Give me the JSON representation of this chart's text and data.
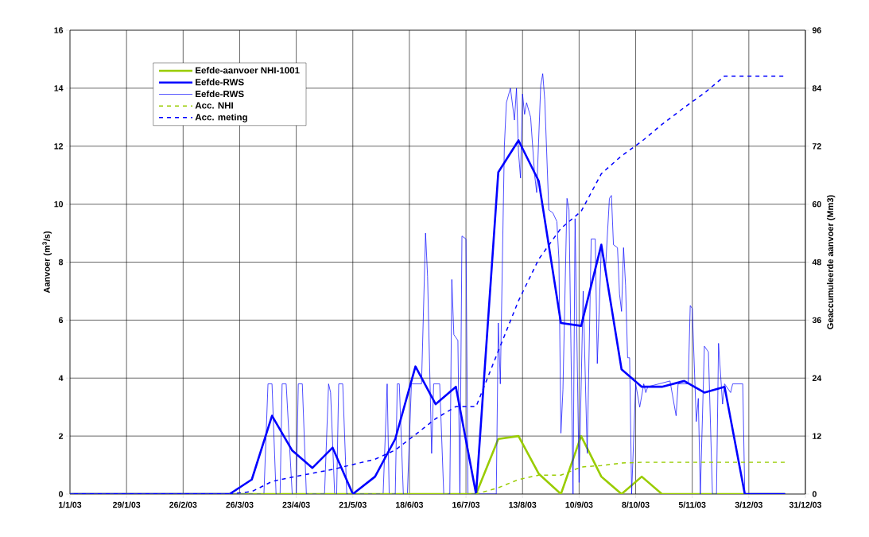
{
  "chart_data": {
    "type": "line",
    "ylabel": "Aanvoer (m$^{3}$/s)",
    "y2label": "Geaccumuleerde aanvoer (Mm3)",
    "xlim": [
      "2003-01-01",
      "2003-12-31"
    ],
    "xticks": [
      {
        "value": "2003-01-01",
        "label": "1/1/03"
      },
      {
        "value": "2003-01-29",
        "label": "29/1/03"
      },
      {
        "value": "2003-02-26",
        "label": "26/2/03"
      },
      {
        "value": "2003-03-26",
        "label": "26/3/03"
      },
      {
        "value": "2003-04-23",
        "label": "23/4/03"
      },
      {
        "value": "2003-05-21",
        "label": "21/5/03"
      },
      {
        "value": "2003-06-18",
        "label": "18/6/03"
      },
      {
        "value": "2003-07-16",
        "label": "16/7/03"
      },
      {
        "value": "2003-08-13",
        "label": "13/8/03"
      },
      {
        "value": "2003-09-10",
        "label": "10/9/03"
      },
      {
        "value": "2003-10-08",
        "label": "8/10/03"
      },
      {
        "value": "2003-11-05",
        "label": "5/11/03"
      },
      {
        "value": "2003-12-03",
        "label": "3/12/03"
      },
      {
        "value": "2003-12-31",
        "label": "31/12/03"
      }
    ],
    "ylim": [
      0,
      16
    ],
    "yticks": [
      0,
      2,
      4,
      6,
      8,
      10,
      12,
      14,
      16
    ],
    "y2lim": [
      0,
      96
    ],
    "y2ticks": [
      0,
      12,
      24,
      36,
      48,
      60,
      72,
      84,
      96
    ],
    "grid": true,
    "legend": "top left",
    "series": [
      {
        "name": "Eefde-aanvoer NHI-1001",
        "color": "#99cc00",
        "line_style": "solid",
        "x": [
          "2003-01-01",
          "2003-07-21",
          "2003-08-01",
          "2003-08-11",
          "2003-08-21",
          "2003-09-01",
          "2003-09-11",
          "2003-09-21",
          "2003-10-01",
          "2003-10-11",
          "2003-10-21",
          "2003-12-21"
        ],
        "values": [
          0,
          0,
          1.9,
          2.0,
          0.7,
          0,
          2.0,
          0.6,
          0,
          0.6,
          0,
          0
        ]
      },
      {
        "name": "Eefde-RWS",
        "color": "#0000ff",
        "line_style": "solid",
        "x": [
          "2003-01-01",
          "2003-03-21",
          "2003-04-01",
          "2003-04-11",
          "2003-04-21",
          "2003-05-01",
          "2003-05-11",
          "2003-05-21",
          "2003-06-01",
          "2003-06-11",
          "2003-06-21",
          "2003-07-01",
          "2003-07-11",
          "2003-07-21",
          "2003-08-01",
          "2003-08-11",
          "2003-08-21",
          "2003-09-01",
          "2003-09-11",
          "2003-09-21",
          "2003-10-01",
          "2003-10-11",
          "2003-10-21",
          "2003-11-01",
          "2003-11-11",
          "2003-11-21",
          "2003-12-01",
          "2003-12-21"
        ],
        "values": [
          0,
          0,
          0.5,
          2.7,
          1.5,
          0.9,
          1.6,
          0,
          0.6,
          1.9,
          4.4,
          3.1,
          3.7,
          0,
          11.1,
          12.2,
          10.8,
          5.9,
          5.8,
          8.6,
          4.3,
          3.7,
          3.7,
          3.9,
          3.5,
          3.7,
          0,
          0
        ]
      },
      {
        "name": "Eefde-RWS",
        "color": "#0000ff",
        "line_style": "solid",
        "x": [
          "2003-01-01",
          "2003-04-07",
          "2003-04-09",
          "2003-04-11",
          "2003-04-13",
          "2003-04-15",
          "2003-04-16",
          "2003-04-18",
          "2003-04-21",
          "2003-04-23",
          "2003-04-24",
          "2003-04-26",
          "2003-04-28",
          "2003-05-07",
          "2003-05-09",
          "2003-05-10",
          "2003-05-12",
          "2003-05-13",
          "2003-05-14",
          "2003-05-16",
          "2003-05-18",
          "2003-06-05",
          "2003-06-07",
          "2003-06-08",
          "2003-06-11",
          "2003-06-12",
          "2003-06-13",
          "2003-06-15",
          "2003-06-17",
          "2003-06-19",
          "2003-06-24",
          "2003-06-26",
          "2003-06-27",
          "2003-06-29",
          "2003-06-30",
          "2003-07-03",
          "2003-07-05",
          "2003-07-08",
          "2003-07-09",
          "2003-07-10",
          "2003-07-12",
          "2003-07-13",
          "2003-07-14",
          "2003-07-16",
          "2003-07-17",
          "2003-07-31",
          "2003-08-01",
          "2003-08-02",
          "2003-08-04",
          "2003-08-05",
          "2003-08-07",
          "2003-08-09",
          "2003-08-10",
          "2003-08-11",
          "2003-08-12",
          "2003-08-13",
          "2003-08-14",
          "2003-08-15",
          "2003-08-17",
          "2003-08-19",
          "2003-08-20",
          "2003-08-22",
          "2003-08-23",
          "2003-08-24",
          "2003-08-26",
          "2003-08-28",
          "2003-08-30",
          "2003-08-31",
          "2003-09-01",
          "2003-09-02",
          "2003-09-04",
          "2003-09-05",
          "2003-09-07",
          "2003-09-08",
          "2003-09-10",
          "2003-09-12",
          "2003-09-14",
          "2003-09-16",
          "2003-09-18",
          "2003-09-19",
          "2003-09-21",
          "2003-09-23",
          "2003-09-25",
          "2003-09-26",
          "2003-09-27",
          "2003-09-29",
          "2003-09-30",
          "2003-10-01",
          "2003-10-02",
          "2003-10-03",
          "2003-10-04",
          "2003-10-05",
          "2003-10-06",
          "2003-10-08",
          "2003-10-10",
          "2003-10-12",
          "2003-10-13",
          "2003-10-14",
          "2003-10-25",
          "2003-10-28",
          "2003-10-29",
          "2003-11-03",
          "2003-11-04",
          "2003-11-05",
          "2003-11-07",
          "2003-11-08",
          "2003-11-09",
          "2003-11-11",
          "2003-11-13",
          "2003-11-15",
          "2003-11-17",
          "2003-11-18",
          "2003-11-20",
          "2003-11-21",
          "2003-11-24",
          "2003-11-25",
          "2003-11-30",
          "2003-12-01",
          "2003-12-21"
        ],
        "values": [
          0,
          0,
          3.8,
          3.8,
          0,
          0,
          3.8,
          3.8,
          0,
          0,
          3.8,
          3.8,
          0,
          0,
          3.8,
          3.5,
          0,
          0,
          3.8,
          3.8,
          0,
          0,
          3.8,
          0,
          0,
          3.8,
          3.8,
          0,
          0,
          3.8,
          3.8,
          9.0,
          7.5,
          1.4,
          3.8,
          3.8,
          0,
          0,
          7.4,
          5.5,
          5.3,
          0,
          8.9,
          8.8,
          0,
          0,
          5.9,
          3.8,
          12.0,
          13.5,
          14.0,
          12.9,
          14.0,
          11.8,
          10.9,
          13.8,
          13.1,
          13.5,
          13.0,
          11.0,
          10.4,
          14.1,
          14.5,
          13.6,
          9.8,
          9.7,
          9.4,
          8.1,
          2.1,
          3.6,
          10.2,
          9.8,
          0,
          9.5,
          0.4,
          7.0,
          1.4,
          8.8,
          8.8,
          4.5,
          8.5,
          7.7,
          10.2,
          10.3,
          8.6,
          8.5,
          6.9,
          6.3,
          8.5,
          7.2,
          4.7,
          4.7,
          0,
          3.8,
          3.0,
          3.8,
          3.5,
          3.7,
          3.9,
          2.7,
          3.8,
          3.8,
          6.5,
          6.4,
          2.5,
          3.3,
          0,
          5.1,
          4.9,
          0,
          0,
          5.2,
          3.1,
          3.8,
          3.5,
          3.8,
          3.8,
          0,
          0
        ]
      },
      {
        "name": "Acc. NHI",
        "color": "#99cc00",
        "line_style": "dashed",
        "axis": "y2",
        "x": [
          "2003-01-01",
          "2003-07-21",
          "2003-08-01",
          "2003-08-11",
          "2003-08-21",
          "2003-09-01",
          "2003-09-11",
          "2003-09-21",
          "2003-10-01",
          "2003-10-11",
          "2003-12-21"
        ],
        "values": [
          0,
          0,
          1.3,
          3.0,
          3.9,
          3.9,
          5.6,
          5.9,
          6.4,
          6.6,
          6.6
        ]
      },
      {
        "name": "Acc. meting",
        "color": "#0000ff",
        "line_style": "dashed",
        "axis": "y2",
        "x": [
          "2003-01-01",
          "2003-03-21",
          "2003-04-01",
          "2003-04-11",
          "2003-04-21",
          "2003-05-01",
          "2003-05-11",
          "2003-05-21",
          "2003-06-01",
          "2003-06-11",
          "2003-06-21",
          "2003-07-01",
          "2003-07-11",
          "2003-07-21",
          "2003-08-01",
          "2003-08-11",
          "2003-08-21",
          "2003-09-01",
          "2003-09-11",
          "2003-09-21",
          "2003-10-01",
          "2003-10-11",
          "2003-10-21",
          "2003-11-01",
          "2003-11-11",
          "2003-11-21",
          "2003-12-21"
        ],
        "values": [
          0,
          0,
          0.5,
          2.6,
          3.5,
          4.3,
          5.1,
          6.1,
          7.2,
          9.1,
          12.3,
          15.6,
          18.1,
          18.1,
          29.6,
          40.0,
          48.6,
          55.0,
          58.5,
          66.3,
          70.0,
          73.0,
          76.5,
          80.0,
          83.0,
          86.5,
          86.5
        ]
      }
    ]
  }
}
